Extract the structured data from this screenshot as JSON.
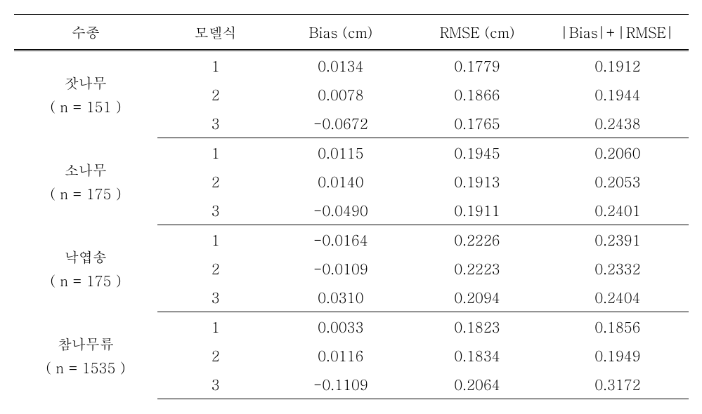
{
  "table": {
    "columns": {
      "species": "수종",
      "model": "모델식",
      "bias": "Bias (cm)",
      "rmse": "RMSE (cm)",
      "sum": "|Bias|+|RMSE|"
    },
    "groups": [
      {
        "species_name": "잣나무",
        "species_n": "( n = 151 )",
        "rows": [
          {
            "model": "1",
            "bias": "0.0134",
            "rmse": "0.1779",
            "sum": "0.1912"
          },
          {
            "model": "2",
            "bias": "0.0078",
            "rmse": "0.1866",
            "sum": "0.1944"
          },
          {
            "model": "3",
            "bias": "-0.0672",
            "rmse": "0.1765",
            "sum": "0.2438"
          }
        ]
      },
      {
        "species_name": "소나무",
        "species_n": "( n = 175 )",
        "rows": [
          {
            "model": "1",
            "bias": "0.0115",
            "rmse": "0.1945",
            "sum": "0.2060"
          },
          {
            "model": "2",
            "bias": "0.0140",
            "rmse": "0.1913",
            "sum": "0.2053"
          },
          {
            "model": "3",
            "bias": "-0.0490",
            "rmse": "0.1911",
            "sum": "0.2401"
          }
        ]
      },
      {
        "species_name": "낙엽송",
        "species_n": "( n = 175 )",
        "rows": [
          {
            "model": "1",
            "bias": "-0.0164",
            "rmse": "0.2226",
            "sum": "0.2391"
          },
          {
            "model": "2",
            "bias": "-0.0109",
            "rmse": "0.2223",
            "sum": "0.2332"
          },
          {
            "model": "3",
            "bias": "0.0310",
            "rmse": "0.2094",
            "sum": "0.2404"
          }
        ]
      },
      {
        "species_name": "참나무류",
        "species_n": "( n = 1535 )",
        "rows": [
          {
            "model": "1",
            "bias": "0.0033",
            "rmse": "0.1823",
            "sum": "0.1856"
          },
          {
            "model": "2",
            "bias": "0.0116",
            "rmse": "0.1834",
            "sum": "0.1949"
          },
          {
            "model": "3",
            "bias": "-0.1109",
            "rmse": "0.2064",
            "sum": "0.3172"
          }
        ]
      }
    ]
  }
}
